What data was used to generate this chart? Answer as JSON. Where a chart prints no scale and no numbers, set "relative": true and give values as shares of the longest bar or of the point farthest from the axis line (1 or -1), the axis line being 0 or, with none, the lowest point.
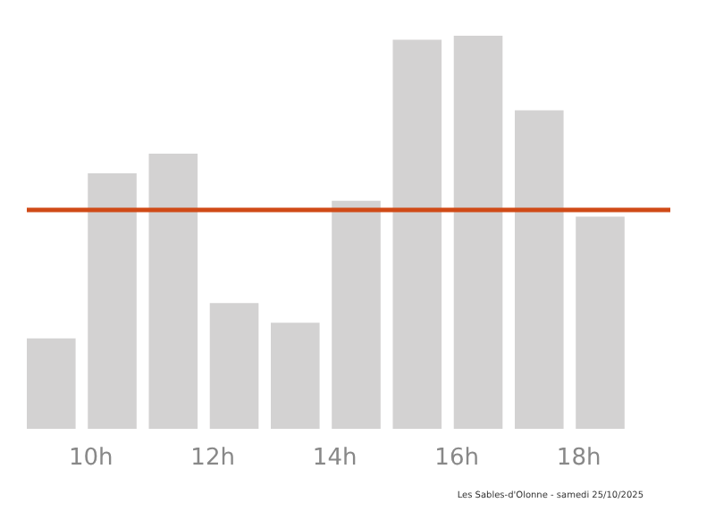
{
  "chart_data": {
    "type": "bar",
    "relative": true,
    "x": [
      9.35,
      10.35,
      11.35,
      12.35,
      13.35,
      14.35,
      15.35,
      16.35,
      17.35,
      18.35
    ],
    "values": [
      0.23,
      0.65,
      0.7,
      0.32,
      0.27,
      0.58,
      0.99,
      1,
      0.81,
      0.54
    ],
    "color": "#d3d2d2",
    "xlim": [
      8.95,
      19.5
    ],
    "xticks": [
      {
        "value": 10,
        "label": "10h"
      },
      {
        "value": 12,
        "label": "12h"
      },
      {
        "value": 14,
        "label": "14h"
      },
      {
        "value": 16,
        "label": "16h"
      },
      {
        "value": 18,
        "label": "18h"
      }
    ],
    "ref_lines": [
      {
        "axis": "y",
        "value": 0.56,
        "label": null,
        "color": "#d04a17"
      }
    ],
    "annotations": [
      "Les Sables-d'Olonne - samedi 25/10/2025"
    ],
    "grid": false
  }
}
